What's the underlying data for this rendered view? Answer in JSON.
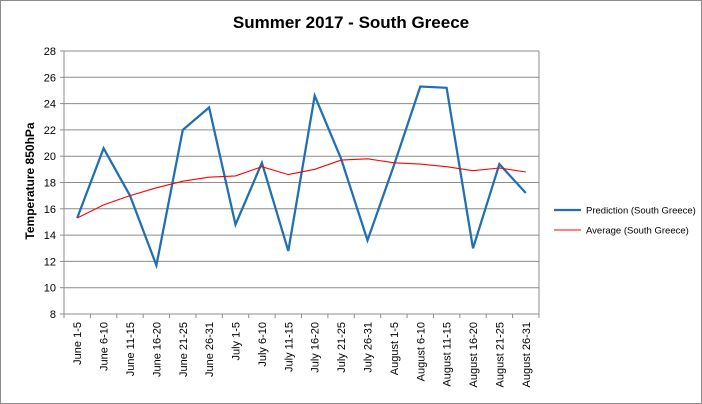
{
  "chart_data": {
    "type": "line",
    "title": "Summer 2017 - South Greece",
    "xlabel": "",
    "ylabel": "Temperature 850hPa",
    "ylim": [
      8,
      28
    ],
    "ystep": 2,
    "grid": true,
    "legend_position": "right",
    "categories": [
      "June 1-5",
      "June 6-10",
      "June 11-15",
      "June 16-20",
      "June 21-25",
      "June 26-31",
      "July 1-5",
      "July 6-10",
      "July 11-15",
      "July 16-20",
      "July 21-25",
      "July 26-31",
      "August 1-5",
      "August 6-10",
      "August 11-15",
      "August 16-20",
      "August 21-25",
      "August 26-31"
    ],
    "series": [
      {
        "name": "Prediction (South Greece)",
        "color": "#1f6fb2",
        "values": [
          15.3,
          20.6,
          17.0,
          11.7,
          22.0,
          23.7,
          14.8,
          19.5,
          12.8,
          24.6,
          19.8,
          13.6,
          19.3,
          25.3,
          25.2,
          13.0,
          19.4,
          17.2
        ]
      },
      {
        "name": "Average (South Greece)",
        "color": "#ff0000",
        "values": [
          15.3,
          16.3,
          17.0,
          17.6,
          18.1,
          18.4,
          18.5,
          19.2,
          18.6,
          19.0,
          19.7,
          19.8,
          19.5,
          19.4,
          19.2,
          18.9,
          19.1,
          18.8
        ]
      }
    ]
  }
}
